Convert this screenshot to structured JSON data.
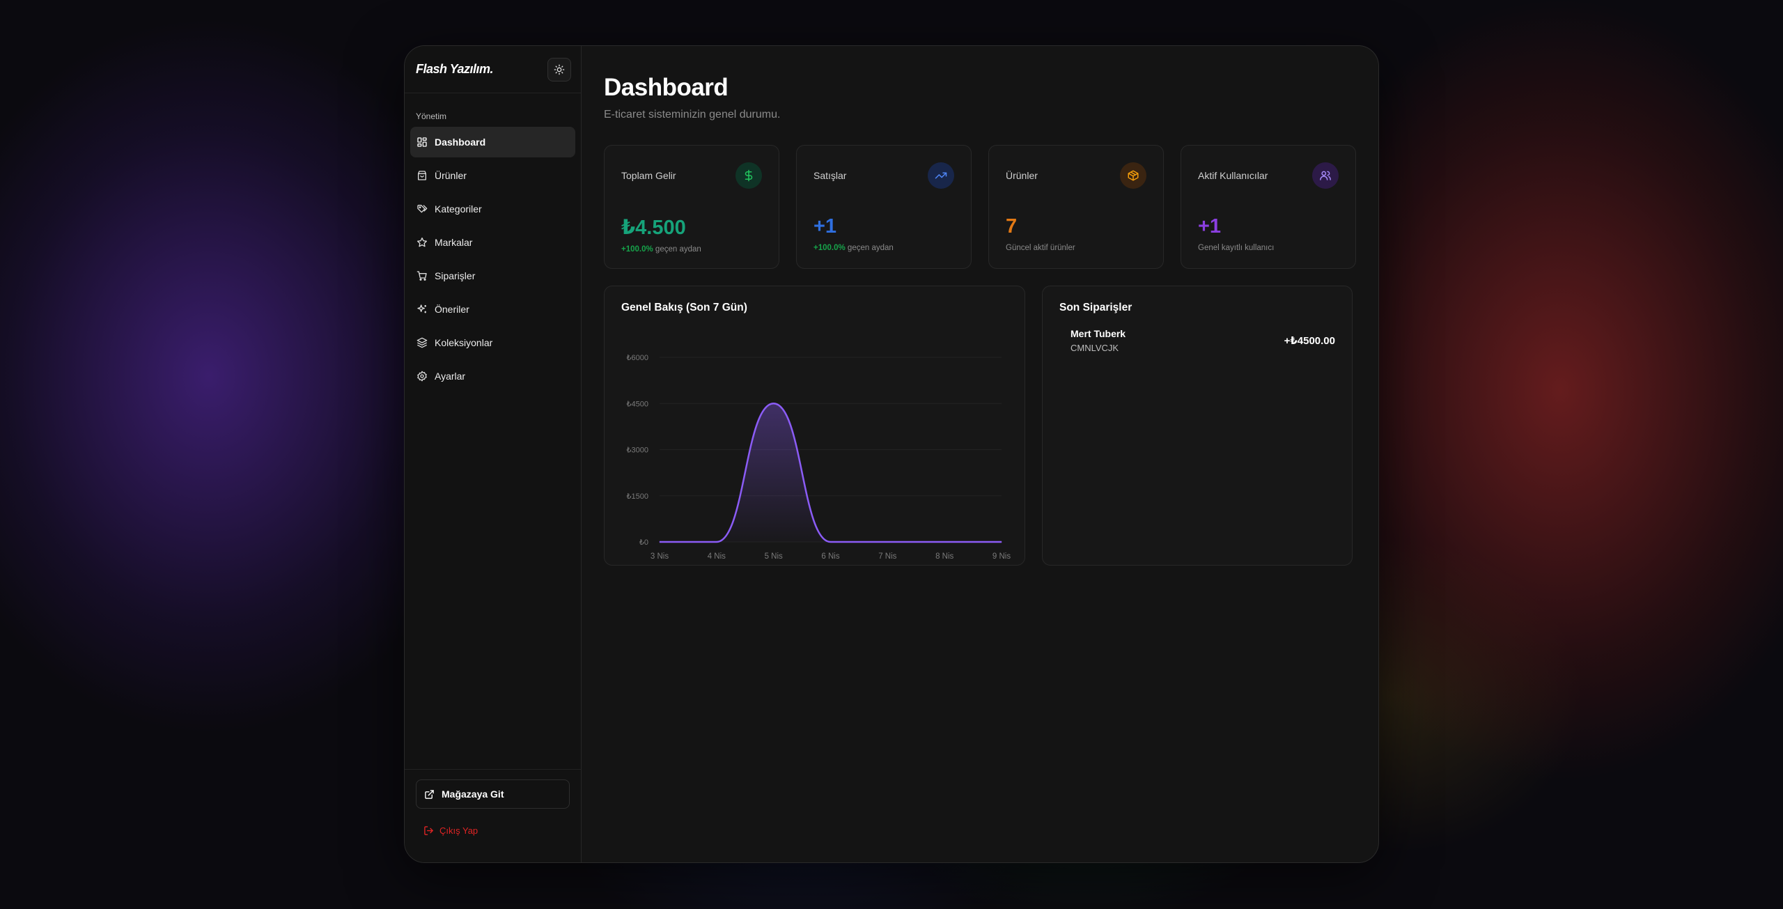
{
  "brand": {
    "name": "Flash Yazılım."
  },
  "sidebar": {
    "section_label": "Yönetim",
    "items": [
      {
        "label": "Dashboard",
        "icon": "grid-icon",
        "active": true
      },
      {
        "label": "Ürünler",
        "icon": "bag-icon"
      },
      {
        "label": "Kategoriler",
        "icon": "tags-icon"
      },
      {
        "label": "Markalar",
        "icon": "star-icon"
      },
      {
        "label": "Siparişler",
        "icon": "cart-icon"
      },
      {
        "label": "Öneriler",
        "icon": "sparkles-icon"
      },
      {
        "label": "Koleksiyonlar",
        "icon": "layers-icon"
      },
      {
        "label": "Ayarlar",
        "icon": "gear-icon"
      }
    ],
    "store_button": "Mağazaya Git",
    "logout": "Çıkış Yap"
  },
  "header": {
    "title": "Dashboard",
    "subtitle": "E-ticaret sisteminizin genel durumu."
  },
  "stats": [
    {
      "label": "Toplam Gelir",
      "value": "₺4.500",
      "pct": "+100.0%",
      "foot": " geçen aydan",
      "color": "#16a37a",
      "icon": "dollar-icon"
    },
    {
      "label": "Satışlar",
      "value": "+1",
      "pct": "+100.0%",
      "foot": " geçen aydan",
      "color": "#2f6fe0",
      "icon": "trending-up-icon"
    },
    {
      "label": "Ürünler",
      "value": "7",
      "pct": "",
      "foot": "Güncel aktif ürünler",
      "color": "#e37914",
      "icon": "box-icon"
    },
    {
      "label": "Aktif Kullanıcılar",
      "value": "+1",
      "pct": "",
      "foot": "Genel kayıtlı kullanıcı",
      "color": "#8b3fe0",
      "icon": "users-icon"
    }
  ],
  "overview": {
    "title": "Genel Bakış (Son 7 Gün)"
  },
  "chart_data": {
    "type": "area",
    "x": [
      "3 Nis",
      "4 Nis",
      "5 Nis",
      "6 Nis",
      "7 Nis",
      "8 Nis",
      "9 Nis"
    ],
    "series": [
      {
        "values": [
          0,
          0,
          4500,
          0,
          0,
          0,
          0
        ]
      }
    ],
    "yticks": [
      "₺0",
      "₺1500",
      "₺3000",
      "₺4500",
      "₺6000"
    ],
    "ylim": [
      0,
      6000
    ],
    "grid": true,
    "line_color": "#8b5cf6"
  },
  "orders": {
    "title": "Son Siparişler",
    "items": [
      {
        "name": "Mert Tuberk",
        "code": "CMNLVCJK",
        "amount": "+₺4500.00"
      }
    ]
  }
}
